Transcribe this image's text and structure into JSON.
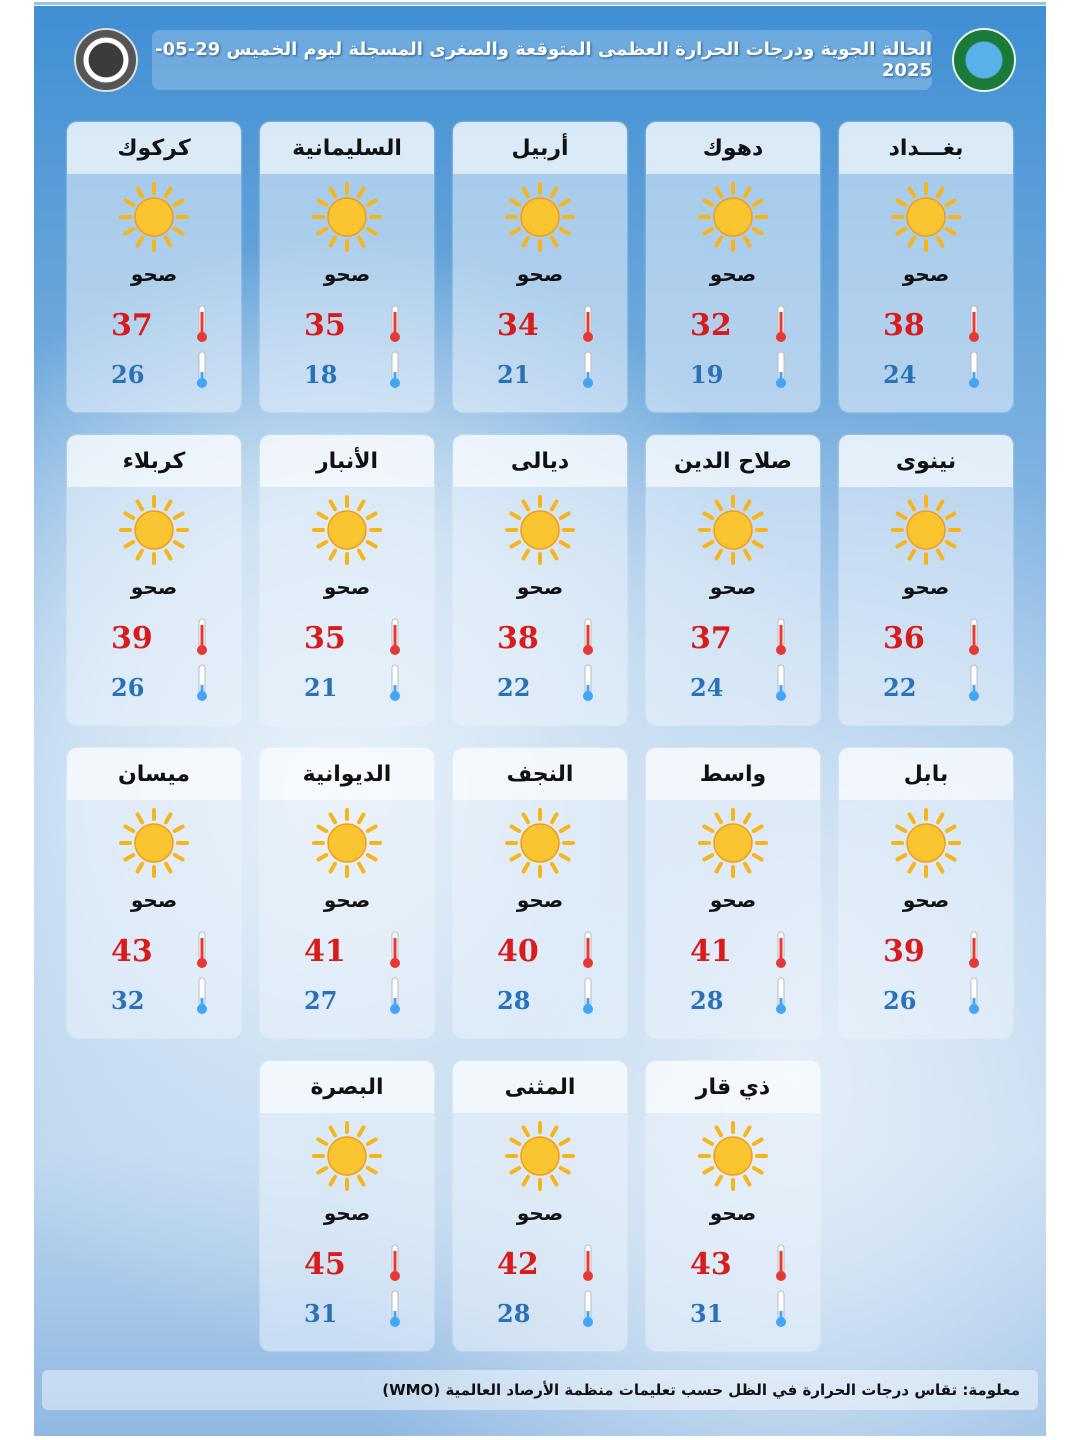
{
  "header": {
    "title": "الحالة الجوية ودرجات الحرارة العظمى المتوقعة والصغرى المسجلة ليوم الخميس 29-05-2025"
  },
  "colors": {
    "max_temp": "#d81b1b",
    "min_temp": "#2a72b8",
    "sun": "#f7b51d"
  },
  "icons": {
    "condition": "sun-icon",
    "max": "thermometer-hot-icon",
    "min": "thermometer-cold-icon"
  },
  "cities": [
    {
      "name": "بغـــداد",
      "condition": "صحو",
      "max": "38",
      "min": "24"
    },
    {
      "name": "دهوك",
      "condition": "صحو",
      "max": "32",
      "min": "19"
    },
    {
      "name": "أربيل",
      "condition": "صحو",
      "max": "34",
      "min": "21"
    },
    {
      "name": "السليمانية",
      "condition": "صحو",
      "max": "35",
      "min": "18"
    },
    {
      "name": "كركوك",
      "condition": "صحو",
      "max": "37",
      "min": "26"
    },
    {
      "name": "نينوى",
      "condition": "صحو",
      "max": "36",
      "min": "22"
    },
    {
      "name": "صلاح الدين",
      "condition": "صحو",
      "max": "37",
      "min": "24"
    },
    {
      "name": "ديالى",
      "condition": "صحو",
      "max": "38",
      "min": "22"
    },
    {
      "name": "الأنبار",
      "condition": "صحو",
      "max": "35",
      "min": "21"
    },
    {
      "name": "كربلاء",
      "condition": "صحو",
      "max": "39",
      "min": "26"
    },
    {
      "name": "بابل",
      "condition": "صحو",
      "max": "39",
      "min": "26"
    },
    {
      "name": "واسط",
      "condition": "صحو",
      "max": "41",
      "min": "28"
    },
    {
      "name": "النجف",
      "condition": "صحو",
      "max": "40",
      "min": "28"
    },
    {
      "name": "الديوانية",
      "condition": "صحو",
      "max": "41",
      "min": "27"
    },
    {
      "name": "ميسان",
      "condition": "صحو",
      "max": "43",
      "min": "32"
    },
    {
      "name": "ذي قار",
      "condition": "صحو",
      "max": "43",
      "min": "31"
    },
    {
      "name": "المثنى",
      "condition": "صحو",
      "max": "42",
      "min": "28"
    },
    {
      "name": "البصرة",
      "condition": "صحو",
      "max": "45",
      "min": "31"
    }
  ],
  "footer": {
    "note": "معلومة: تقاس درجات الحرارة في الظل حسب تعليمات منظمة الأرصاد العالمية (WMO)"
  }
}
